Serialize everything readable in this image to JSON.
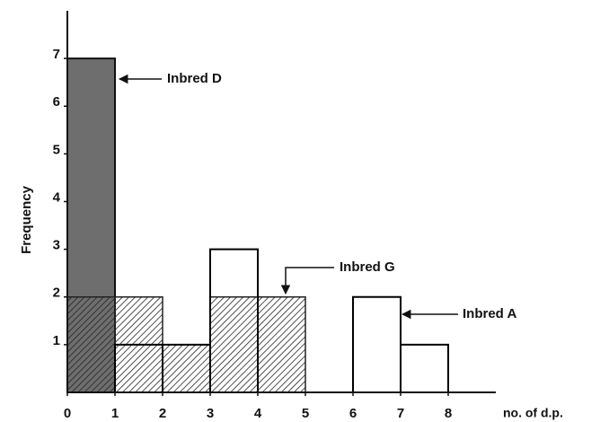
{
  "chart_data": {
    "type": "histogram",
    "xlabel": "no. of d.p.",
    "ylabel": "Frequency",
    "xlim": [
      0,
      9
    ],
    "ylim": [
      0,
      8
    ],
    "xticks": [
      0,
      1,
      2,
      3,
      4,
      5,
      6,
      7,
      8
    ],
    "yticks": [
      1,
      2,
      3,
      4,
      5,
      6,
      7
    ],
    "series": [
      {
        "name": "Inbred D",
        "color": "#6e6e6e",
        "style": "stipple",
        "bins": [
          0,
          1
        ],
        "values": [
          7
        ]
      },
      {
        "name": "Inbred G",
        "color": "#222222",
        "style": "hatch",
        "bins": [
          0,
          1,
          2,
          3,
          4,
          5
        ],
        "values": [
          2,
          2,
          1,
          2,
          2
        ]
      },
      {
        "name": "Inbred A",
        "color": "#000000",
        "style": "outline",
        "bins": [
          1,
          2,
          3,
          4,
          5,
          6,
          7,
          8
        ],
        "values": [
          1,
          1,
          3,
          0,
          0,
          2,
          1
        ]
      }
    ]
  }
}
